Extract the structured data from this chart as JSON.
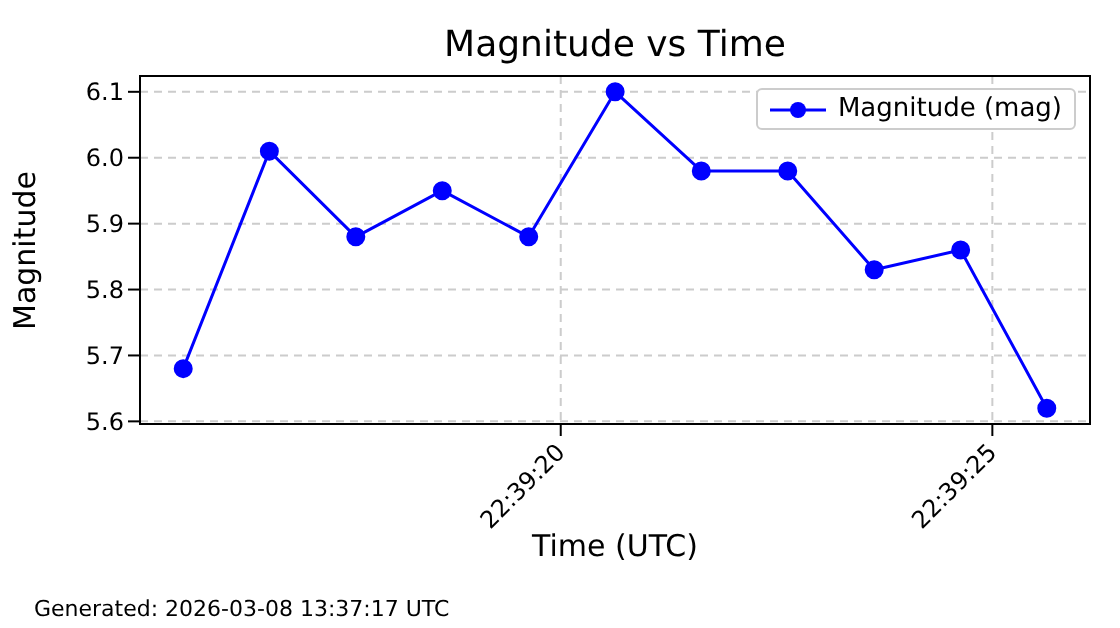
{
  "chart_data": {
    "type": "line",
    "title": "Magnitude vs Time",
    "xlabel": "Time (UTC)",
    "ylabel": "Magnitude",
    "x": [
      22.654342,
      22.654619,
      22.654897,
      22.655175,
      22.655453,
      22.655731,
      22.656008,
      22.656286,
      22.656564,
      22.656842,
      22.657119
    ],
    "series": [
      {
        "name": "Magnitude (mag)",
        "color": "#0000ff",
        "values": [
          5.68,
          6.01,
          5.88,
          5.95,
          5.88,
          6.1,
          5.98,
          5.98,
          5.83,
          5.86,
          5.62
        ]
      }
    ],
    "xlim": [
      22.654203,
      22.657258
    ],
    "xticks": [
      {
        "value": 22.655556,
        "label": "22:39:20"
      },
      {
        "value": 22.656944,
        "label": "22:39:25"
      }
    ],
    "ylim": [
      5.596,
      6.124
    ],
    "yticks": [
      5.6,
      5.7,
      5.8,
      5.9,
      {
        "value": 6.0,
        "label": "6.0"
      },
      6.1
    ],
    "grid": true,
    "legend": "top right",
    "marker": "circle",
    "line_style": "solid",
    "annotations": [
      "Generated: 2026-03-08 13:37:17 UTC"
    ]
  }
}
